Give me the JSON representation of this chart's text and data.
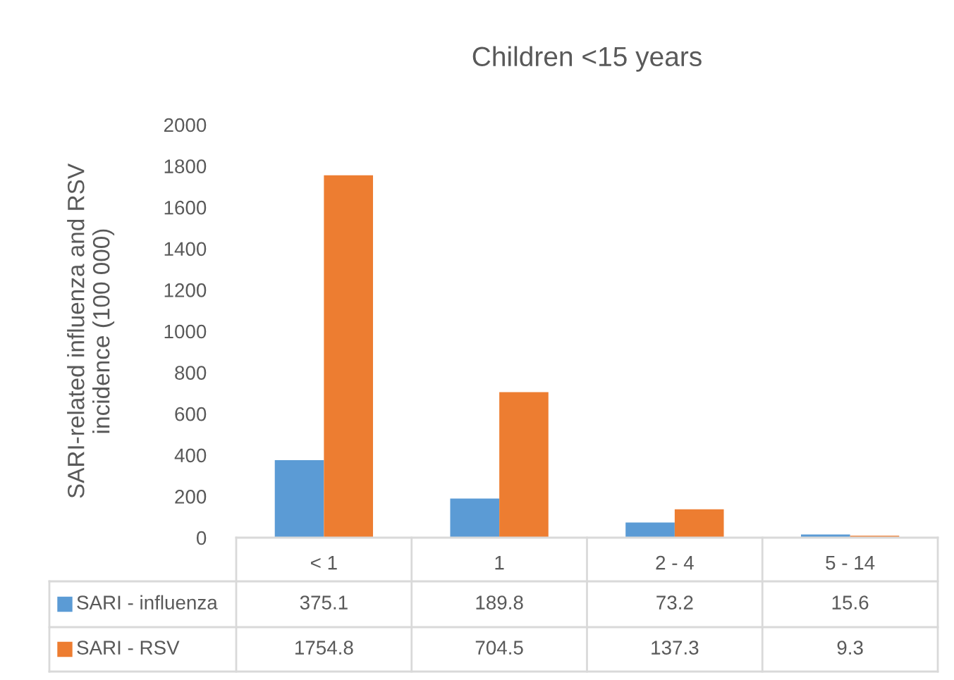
{
  "chart_data": {
    "type": "bar",
    "title": "Children <15 years",
    "ylabel": "SARI-related influenza and RSV\nincidence (100 000)",
    "categories": [
      "< 1",
      "1",
      "2 - 4",
      "5 - 14"
    ],
    "series": [
      {
        "name": "SARI - influenza",
        "color": "#5b9bd5",
        "values": [
          375.1,
          189.8,
          73.2,
          15.6
        ]
      },
      {
        "name": "SARI - RSV",
        "color": "#ed7d31",
        "values": [
          1754.8,
          704.5,
          137.3,
          9.3
        ]
      }
    ],
    "ylim": [
      0,
      2000
    ],
    "yticks": [
      0,
      200,
      400,
      600,
      800,
      1000,
      1200,
      1400,
      1600,
      1800,
      2000
    ],
    "grid": false,
    "legend": "bottom",
    "data_labels": true
  }
}
